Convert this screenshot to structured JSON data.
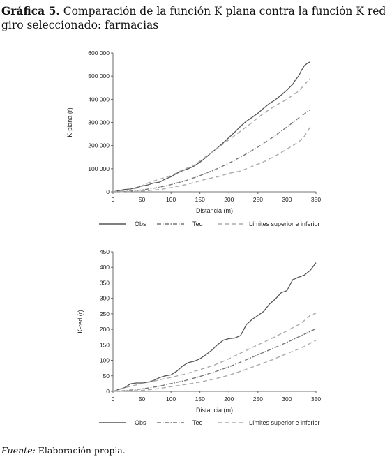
{
  "figure": {
    "title_label": "Gráfica 5.",
    "title_line1": "Comparación de la función K plana contra la función K red,",
    "title_line2": "giro seleccionado: farmacias",
    "source_label": "Fuente:",
    "source_text": "Elaboración propia."
  },
  "colors": {
    "obs": "#555555",
    "teo": "#777777",
    "env": "#aaaaaa",
    "axis": "#444444"
  },
  "chart_data": [
    {
      "type": "line",
      "title": "",
      "xlabel": "Distancia (m)",
      "ylabel": "K-plana (r)",
      "xlim": [
        0,
        350
      ],
      "ylim": [
        0,
        600000
      ],
      "xticks": [
        0,
        50,
        100,
        150,
        200,
        250,
        300,
        350
      ],
      "yticks": [
        0,
        100000,
        200000,
        300000,
        400000,
        500000,
        600000
      ],
      "ytick_labels": [
        "0",
        "100 000",
        "200 000",
        "300 000",
        "400 000",
        "500 000",
        "600 000"
      ],
      "legend_position": "bottom",
      "legend": [
        "Obs",
        "Teo",
        "Límites superior e inferior"
      ],
      "series": [
        {
          "name": "Obs",
          "style": "solid",
          "x": [
            0,
            10,
            20,
            30,
            40,
            50,
            60,
            70,
            80,
            90,
            100,
            110,
            120,
            130,
            140,
            150,
            160,
            170,
            180,
            190,
            200,
            210,
            220,
            230,
            240,
            250,
            260,
            270,
            280,
            290,
            300,
            310,
            315,
            320,
            325,
            330,
            335,
            340
          ],
          "y": [
            0,
            5000,
            10000,
            12000,
            18000,
            25000,
            30000,
            38000,
            42000,
            55000,
            65000,
            80000,
            92000,
            100000,
            112000,
            128000,
            148000,
            170000,
            190000,
            212000,
            235000,
            258000,
            283000,
            305000,
            322000,
            340000,
            362000,
            382000,
            398000,
            418000,
            440000,
            465000,
            485000,
            500000,
            525000,
            545000,
            555000,
            562000
          ]
        },
        {
          "name": "Teo",
          "style": "dashdot",
          "x": [
            0,
            25,
            50,
            75,
            100,
            125,
            150,
            175,
            200,
            225,
            250,
            275,
            300,
            325,
            340
          ],
          "y": [
            0,
            2000,
            8000,
            17500,
            31000,
            48000,
            70000,
            95000,
            124000,
            157000,
            194000,
            235000,
            280000,
            328000,
            355000
          ]
        },
        {
          "name": "Límites superior e inferior",
          "style": "dashed",
          "x": [
            0,
            20,
            40,
            60,
            80,
            100,
            120,
            140,
            160,
            180,
            200,
            220,
            240,
            260,
            280,
            300,
            320,
            340
          ],
          "y": [
            0,
            5000,
            15000,
            38000,
            55000,
            70000,
            95000,
            115000,
            152000,
            188000,
            225000,
            262000,
            300000,
            340000,
            372000,
            400000,
            435000,
            490000
          ]
        },
        {
          "name": "",
          "style": "dashed",
          "x": [
            0,
            40,
            60,
            80,
            100,
            120,
            140,
            160,
            180,
            200,
            220,
            240,
            260,
            280,
            300,
            310,
            320,
            330,
            340
          ],
          "y": [
            0,
            2000,
            5000,
            10000,
            18000,
            28000,
            40000,
            55000,
            65000,
            80000,
            90000,
            110000,
            130000,
            155000,
            185000,
            200000,
            215000,
            240000,
            280000
          ]
        }
      ]
    },
    {
      "type": "line",
      "title": "",
      "xlabel": "Distancia (m)",
      "ylabel": "K-red (r)",
      "xlim": [
        0,
        350
      ],
      "ylim": [
        0,
        450
      ],
      "xticks": [
        0,
        50,
        100,
        150,
        200,
        250,
        300,
        350
      ],
      "yticks": [
        0,
        50,
        100,
        150,
        200,
        250,
        300,
        350,
        400,
        450
      ],
      "ytick_labels": [
        "0",
        "50",
        "100",
        "150",
        "200",
        "250",
        "300",
        "350",
        "400",
        "450"
      ],
      "legend_position": "bottom",
      "legend": [
        "Obs",
        "Teo",
        "Límites superior e inferior"
      ],
      "series": [
        {
          "name": "Obs",
          "style": "solid",
          "x": [
            0,
            10,
            20,
            30,
            40,
            50,
            60,
            70,
            80,
            90,
            100,
            110,
            120,
            130,
            140,
            150,
            160,
            170,
            180,
            190,
            200,
            210,
            220,
            230,
            240,
            250,
            260,
            270,
            280,
            290,
            300,
            310,
            320,
            330,
            340,
            350
          ],
          "y": [
            0,
            6,
            12,
            24,
            27,
            27,
            29,
            35,
            44,
            50,
            53,
            65,
            82,
            93,
            97,
            105,
            118,
            132,
            150,
            165,
            170,
            172,
            180,
            215,
            232,
            245,
            258,
            282,
            298,
            318,
            325,
            360,
            368,
            375,
            390,
            415
          ]
        },
        {
          "name": "Teo",
          "style": "dashdot",
          "x": [
            0,
            25,
            50,
            75,
            100,
            125,
            150,
            175,
            200,
            225,
            250,
            275,
            300,
            325,
            350
          ],
          "y": [
            0,
            3,
            8,
            15,
            25,
            35,
            48,
            63,
            79,
            98,
            118,
            138,
            158,
            180,
            202
          ]
        },
        {
          "name": "Límites superior e inferior",
          "style": "dashed",
          "x": [
            0,
            25,
            50,
            75,
            100,
            125,
            150,
            175,
            200,
            225,
            250,
            275,
            300,
            325,
            340,
            350
          ],
          "y": [
            0,
            14,
            25,
            35,
            45,
            56,
            70,
            85,
            105,
            128,
            150,
            172,
            195,
            220,
            245,
            252
          ]
        },
        {
          "name": "",
          "style": "dashed",
          "x": [
            0,
            50,
            75,
            100,
            125,
            150,
            175,
            200,
            225,
            250,
            275,
            300,
            325,
            350
          ],
          "y": [
            0,
            3,
            8,
            15,
            22,
            30,
            40,
            52,
            68,
            85,
            102,
            122,
            140,
            165
          ]
        }
      ]
    }
  ]
}
